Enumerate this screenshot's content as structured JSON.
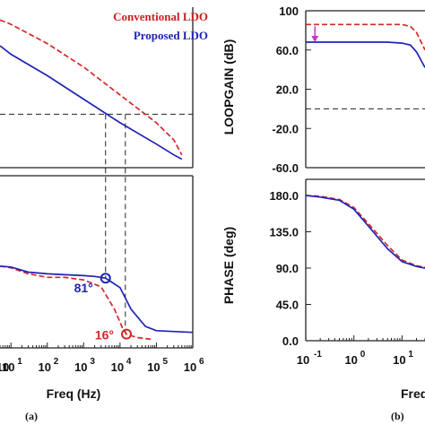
{
  "legend": {
    "conventional": "Conventional LDO",
    "proposed": "Proposed LDO",
    "conventional_color": "#d62728",
    "proposed_color": "#1f23b4"
  },
  "panel_labels": {
    "a": "(a)",
    "b": "(b)"
  },
  "chart_data": [
    {
      "panel": "a-top",
      "type": "line",
      "x_scale": "log",
      "xlim": [
        5,
        1000000
      ],
      "grid": false,
      "series": [
        {
          "name": "Conventional LDO",
          "style": "dashed",
          "color": "#d62728",
          "x": [
            5,
            10,
            100,
            1000,
            10000,
            100000,
            300000,
            500000
          ],
          "y": [
            84,
            82,
            73,
            62,
            49,
            36,
            28,
            21
          ]
        },
        {
          "name": "Proposed LDO",
          "style": "solid",
          "color": "#1f23b4",
          "x": [
            5,
            10,
            100,
            1000,
            10000,
            100000,
            300000,
            500000
          ],
          "y": [
            72,
            68,
            58,
            47,
            36,
            26,
            21,
            19
          ]
        }
      ],
      "y_reference": 40,
      "crossover_x": [
        4000,
        14000
      ]
    },
    {
      "panel": "a-bottom",
      "type": "line",
      "x_scale": "log",
      "xlim": [
        5,
        1000000
      ],
      "grid": false,
      "xlabel": "Freq (Hz)",
      "xtick_exponents": [
        "1",
        "2",
        "3",
        "4",
        "5",
        "6"
      ],
      "series": [
        {
          "name": "Conventional LDO",
          "style": "dashed",
          "color": "#d62728",
          "x": [
            5,
            10,
            30,
            100,
            300,
            1000,
            3000,
            7000,
            12000,
            15000,
            30000,
            70000
          ],
          "y": [
            95,
            93,
            86,
            82,
            82,
            79,
            71,
            45,
            22,
            16,
            12,
            10
          ]
        },
        {
          "name": "Proposed LDO",
          "style": "solid",
          "color": "#1f23b4",
          "x": [
            5,
            10,
            30,
            100,
            300,
            1000,
            2000,
            4000,
            10000,
            20000,
            50000,
            100000,
            1000000
          ],
          "y": [
            95,
            94,
            88,
            86,
            85,
            84,
            83,
            81,
            70,
            45,
            25,
            20,
            18
          ]
        }
      ],
      "annotations": [
        {
          "text": "81°",
          "x": 4000,
          "y": 81,
          "color": "#1f23b4"
        },
        {
          "text": "16°",
          "x": 15000,
          "y": 16,
          "color": "#d62728"
        }
      ]
    },
    {
      "panel": "b-top",
      "type": "line",
      "x_scale": "log",
      "xlim": [
        0.1,
        30
      ],
      "ylabel": "LOOPGAIN (dB)",
      "ytick_labels": [
        "100",
        "60.0",
        "20.0",
        "-20.0",
        "-60.0"
      ],
      "ylim": [
        -60,
        100
      ],
      "grid": false,
      "series": [
        {
          "name": "Conventional LDO",
          "style": "dashed",
          "color": "#d62728",
          "x": [
            0.1,
            1,
            5,
            10,
            15,
            20,
            30
          ],
          "y": [
            86,
            86,
            86,
            86,
            84,
            78,
            60
          ]
        },
        {
          "name": "Proposed LDO",
          "style": "solid",
          "color": "#1f23b4",
          "x": [
            0.1,
            1,
            5,
            10,
            15,
            20,
            30
          ],
          "y": [
            68,
            68,
            68,
            67,
            65,
            58,
            42
          ]
        }
      ],
      "y_reference": 0,
      "arrow": {
        "x": 0.12,
        "from": 86,
        "to": 68,
        "color": "#cc33cc"
      }
    },
    {
      "panel": "b-bottom",
      "type": "line",
      "x_scale": "log",
      "xlim": [
        0.1,
        30
      ],
      "ylabel": "PHASE (deg)",
      "xlabel": "Freq",
      "ytick_labels": [
        "180.0",
        "135.0",
        "90.0",
        "45.0",
        "0.0"
      ],
      "xtick_exponents": [
        "-1",
        "0",
        "1"
      ],
      "ylim": [
        0,
        200
      ],
      "grid": false,
      "series": [
        {
          "name": "Conventional LDO",
          "style": "dashed",
          "color": "#d62728",
          "x": [
            0.1,
            0.2,
            0.5,
            1,
            2,
            5,
            10,
            20,
            30
          ],
          "y": [
            180,
            179,
            175,
            165,
            145,
            118,
            100,
            93,
            91
          ]
        },
        {
          "name": "Proposed LDO",
          "style": "solid",
          "color": "#1f23b4",
          "x": [
            0.1,
            0.2,
            0.5,
            1,
            2,
            5,
            10,
            20,
            30
          ],
          "y": [
            180,
            178,
            174,
            163,
            142,
            114,
            98,
            92,
            90
          ]
        }
      ]
    }
  ]
}
